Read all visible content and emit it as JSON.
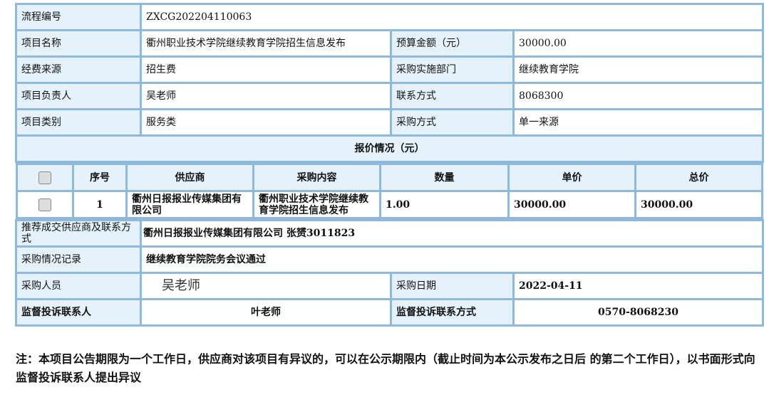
{
  "info": {
    "process_no_label": "流程编号",
    "process_no": "ZXCG202204110063",
    "project_name_label": "项目名称",
    "project_name": "衢州职业技术学院继续教育学院招生信息发布",
    "budget_label": "预算金额（元）",
    "budget": "30000.00",
    "fund_source_label": "经费来源",
    "fund_source": "招生费",
    "dept_label": "采购实施部门",
    "dept": "继续教育学院",
    "manager_label": "项目负责人",
    "manager": "吴老师",
    "contact_label": "联系方式",
    "contact": "8068300",
    "category_label": "项目类别",
    "category": "服务类",
    "method_label": "采购方式",
    "method": "单一来源"
  },
  "quote": {
    "title": "报价情况（元）",
    "headers": [
      "序号",
      "供应商",
      "采购内容",
      "数量",
      "单价",
      "总价"
    ],
    "rows": [
      {
        "no": "1",
        "supplier": "衢州日报报业传媒集团有限公司",
        "content": "衢州职业技术学院继续教育学院招生信息发布",
        "qty": "1.00",
        "unit": "30000.00",
        "total": "30000.00"
      }
    ]
  },
  "result": {
    "recommend_label": "推荐成交供应商及联系方式",
    "recommend": "衢州日报报业传媒集团有限公司 张赟3011823",
    "record_label": "采购情况记录",
    "record": "继续教育学院院务会议通过",
    "staff_label": "采购人员",
    "staff": "吴老师",
    "date_label": "采购日期",
    "date": "2022-04-11",
    "supervisor_label": "监督投诉联系人",
    "supervisor": "叶老师",
    "supervisor_contact_label": "监督投诉联系方式",
    "supervisor_contact": "0570-8068230"
  },
  "note": "注：本项目公告期限为一个工作日，供应商对该项目有异议的，可以在公示期限内（截止时间为本公示发布之日后 的第二个工作日），以书面形式向监督投诉联系人提出异议"
}
